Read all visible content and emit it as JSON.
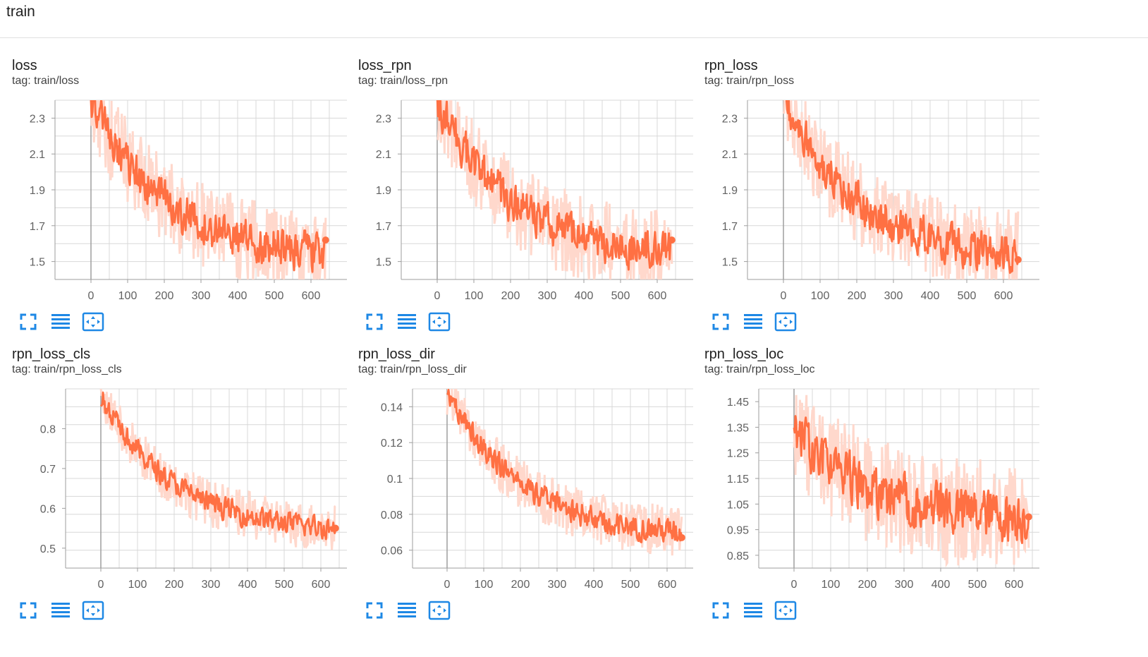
{
  "section": {
    "title": "train"
  },
  "colors": {
    "line": "#ff7043",
    "raw": "#ffd8cc",
    "grid": "#d8d8d8",
    "axis": "#9e9e9e",
    "icon": "#1e88e5"
  },
  "icons": [
    "fullscreen-icon",
    "toggle-log-scale-icon",
    "fit-domain-icon"
  ],
  "charts": [
    {
      "title": "loss",
      "tag": "tag: train/loss"
    },
    {
      "title": "loss_rpn",
      "tag": "tag: train/loss_rpn"
    },
    {
      "title": "rpn_loss",
      "tag": "tag: train/rpn_loss"
    },
    {
      "title": "rpn_loss_cls",
      "tag": "tag: train/rpn_loss_cls"
    },
    {
      "title": "rpn_loss_dir",
      "tag": "tag: train/rpn_loss_dir"
    },
    {
      "title": "rpn_loss_loc",
      "tag": "tag: train/rpn_loss_loc"
    }
  ],
  "chart_data": [
    {
      "type": "line",
      "title": "loss",
      "x_range": [
        0,
        640
      ],
      "ylim": [
        1.4,
        2.4
      ],
      "xticks": [
        "0",
        "100",
        "200",
        "300",
        "400",
        "500",
        "600"
      ],
      "yticks": [
        "1.5",
        "1.7",
        "1.9",
        "2.1",
        "2.3"
      ],
      "start": 2.4,
      "end": 1.55,
      "noise": 0.2,
      "last": 1.62,
      "grid": true,
      "series": [
        {
          "x": [
            0,
            50,
            100,
            200,
            300,
            400,
            500,
            600,
            640
          ],
          "values": [
            2.4,
            2.2,
            2.0,
            1.85,
            1.75,
            1.7,
            1.62,
            1.58,
            1.62
          ]
        }
      ]
    },
    {
      "type": "line",
      "title": "loss_rpn",
      "x_range": [
        0,
        640
      ],
      "ylim": [
        1.4,
        2.4
      ],
      "xticks": [
        "0",
        "100",
        "200",
        "300",
        "400",
        "500",
        "600"
      ],
      "yticks": [
        "1.5",
        "1.7",
        "1.9",
        "2.1",
        "2.3"
      ],
      "start": 2.4,
      "end": 1.55,
      "noise": 0.2,
      "last": 1.62,
      "grid": true,
      "series": [
        {
          "x": [
            0,
            50,
            100,
            200,
            300,
            400,
            500,
            600,
            640
          ],
          "values": [
            2.4,
            2.2,
            2.0,
            1.85,
            1.75,
            1.7,
            1.62,
            1.58,
            1.62
          ]
        }
      ]
    },
    {
      "type": "line",
      "title": "rpn_loss",
      "x_range": [
        0,
        640
      ],
      "ylim": [
        1.4,
        2.4
      ],
      "xticks": [
        "0",
        "100",
        "200",
        "300",
        "400",
        "500",
        "600"
      ],
      "yticks": [
        "1.5",
        "1.7",
        "1.9",
        "2.1",
        "2.3"
      ],
      "start": 2.4,
      "end": 1.55,
      "noise": 0.2,
      "last": 1.51,
      "grid": true,
      "series": [
        {
          "x": [
            0,
            50,
            100,
            200,
            300,
            400,
            500,
            600,
            640
          ],
          "values": [
            2.4,
            2.2,
            2.0,
            1.85,
            1.75,
            1.7,
            1.62,
            1.58,
            1.51
          ]
        }
      ]
    },
    {
      "type": "line",
      "title": "rpn_loss_cls",
      "x_range": [
        0,
        640
      ],
      "ylim": [
        0.45,
        0.9
      ],
      "xticks": [
        "0",
        "100",
        "200",
        "300",
        "400",
        "500",
        "600"
      ],
      "yticks": [
        "0.5",
        "0.6",
        "0.7",
        "0.8"
      ],
      "start": 0.88,
      "end": 0.55,
      "noise": 0.05,
      "last": 0.55,
      "grid": true,
      "series": [
        {
          "x": [
            0,
            50,
            100,
            200,
            300,
            400,
            500,
            600,
            640
          ],
          "values": [
            0.9,
            0.78,
            0.72,
            0.67,
            0.62,
            0.59,
            0.57,
            0.56,
            0.55
          ]
        }
      ]
    },
    {
      "type": "line",
      "title": "rpn_loss_dir",
      "x_range": [
        0,
        640
      ],
      "ylim": [
        0.05,
        0.15
      ],
      "xticks": [
        "0",
        "100",
        "200",
        "300",
        "400",
        "500",
        "600"
      ],
      "yticks": [
        "0.06",
        "0.08",
        "0.1",
        "0.12",
        "0.14"
      ],
      "start": 0.15,
      "end": 0.07,
      "noise": 0.012,
      "last": 0.067,
      "grid": true,
      "series": [
        {
          "x": [
            0,
            50,
            100,
            200,
            300,
            400,
            500,
            600,
            640
          ],
          "values": [
            0.15,
            0.115,
            0.105,
            0.095,
            0.087,
            0.08,
            0.075,
            0.07,
            0.067
          ]
        }
      ]
    },
    {
      "type": "line",
      "title": "rpn_loss_loc",
      "x_range": [
        0,
        640
      ],
      "ylim": [
        0.8,
        1.5
      ],
      "xticks": [
        "0",
        "100",
        "200",
        "300",
        "400",
        "500",
        "600"
      ],
      "yticks": [
        "0.85",
        "0.95",
        "1.05",
        "1.15",
        "1.25",
        "1.35",
        "1.45"
      ],
      "start": 1.35,
      "end": 1.0,
      "noise": 0.18,
      "last": 1.0,
      "grid": true,
      "series": [
        {
          "x": [
            0,
            50,
            100,
            200,
            300,
            400,
            500,
            600,
            640
          ],
          "values": [
            1.5,
            1.2,
            1.15,
            1.1,
            1.07,
            1.05,
            1.02,
            1.0,
            1.0
          ]
        }
      ]
    }
  ]
}
